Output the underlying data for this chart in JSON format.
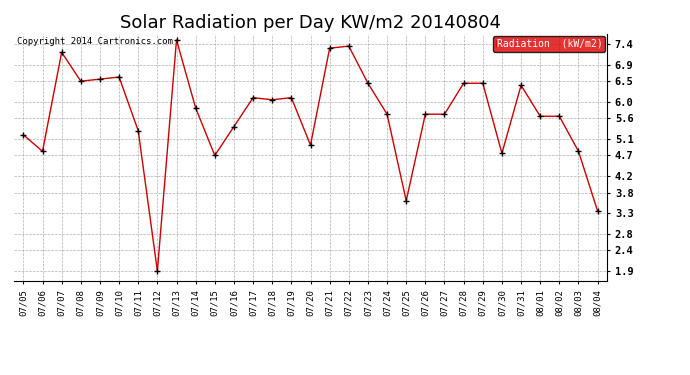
{
  "title": "Solar Radiation per Day KW/m2 20140804",
  "copyright_text": "Copyright 2014 Cartronics.com",
  "legend_label": "Radiation  (kW/m2)",
  "dates": [
    "07/05",
    "07/06",
    "07/07",
    "07/08",
    "07/09",
    "07/10",
    "07/11",
    "07/12",
    "07/13",
    "07/14",
    "07/15",
    "07/16",
    "07/17",
    "07/18",
    "07/19",
    "07/20",
    "07/21",
    "07/22",
    "07/23",
    "07/24",
    "07/25",
    "07/26",
    "07/27",
    "07/28",
    "07/29",
    "07/30",
    "07/31",
    "08/01",
    "08/02",
    "08/03",
    "08/04"
  ],
  "values": [
    5.2,
    4.8,
    7.2,
    6.5,
    6.55,
    6.6,
    5.3,
    1.9,
    7.5,
    5.85,
    4.7,
    5.4,
    6.1,
    6.05,
    6.1,
    4.95,
    7.3,
    7.35,
    6.45,
    5.7,
    3.6,
    5.7,
    5.7,
    6.45,
    6.45,
    4.75,
    6.4,
    5.65,
    5.65,
    4.8,
    3.35
  ],
  "line_color": "#cc0000",
  "marker_color": "#000000",
  "bg_color": "#ffffff",
  "plot_bg_color": "#ffffff",
  "grid_color": "#b0b0b0",
  "yticks": [
    1.9,
    2.4,
    2.8,
    3.3,
    3.8,
    4.2,
    4.7,
    5.1,
    5.6,
    6.0,
    6.5,
    6.9,
    7.4
  ],
  "ylim": [
    1.65,
    7.65
  ],
  "title_fontsize": 13,
  "legend_bg": "#dd0000",
  "legend_text_color": "#ffffff"
}
